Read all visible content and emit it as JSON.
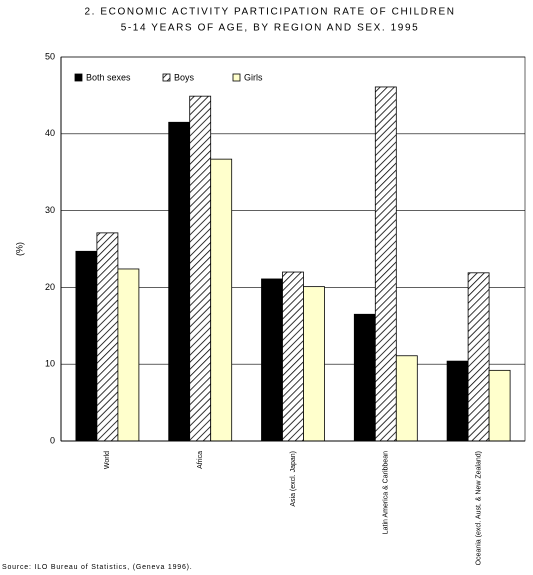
{
  "chart_data": {
    "type": "bar",
    "title": [
      "2. ECONOMIC ACTIVITY PARTICIPATION RATE OF CHILDREN",
      "5-14 YEARS OF AGE, BY REGION AND SEX. 1995"
    ],
    "y_label": "(%)",
    "source": "Source: ILO Bureau of Statistics, (Geneva 1996).",
    "categories": [
      "World",
      "Africa",
      "Asia (excl. Japan)",
      "Latin America & Caribbean",
      "Oceania (excl. Aust. & New Zealand)"
    ],
    "series": [
      {
        "name": "Both sexes",
        "color": "#000000",
        "values": [
          24.7,
          41.5,
          21.1,
          16.5,
          10.4
        ]
      },
      {
        "name": "Boys",
        "color": "#ffffff",
        "hatch": true,
        "values": [
          27.1,
          44.9,
          22.0,
          46.1,
          21.9
        ]
      },
      {
        "name": "Girls",
        "color": "#ffffcc",
        "values": [
          22.4,
          36.7,
          20.1,
          11.1,
          9.2
        ]
      }
    ],
    "ylim": [
      0,
      50
    ],
    "yticks": [
      0,
      10,
      20,
      30,
      40,
      50
    ],
    "grid": true
  }
}
